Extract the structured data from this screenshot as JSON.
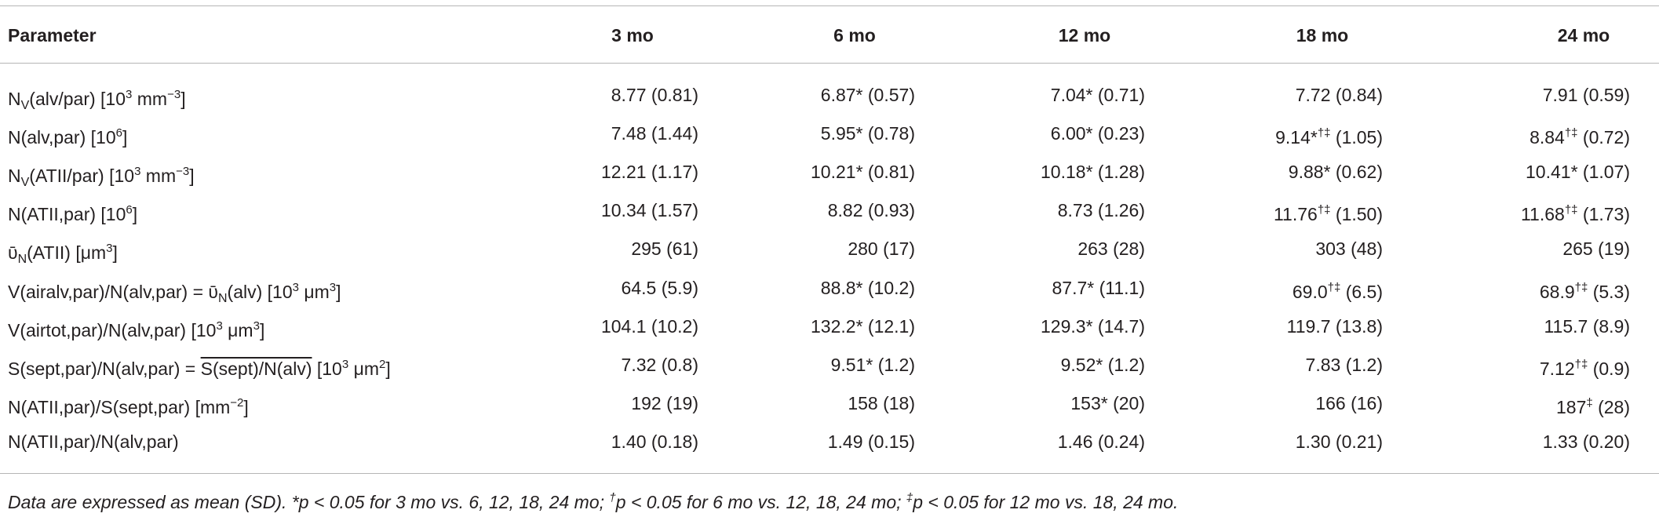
{
  "table": {
    "header": [
      "Parameter",
      "3 mo",
      "6 mo",
      "12 mo",
      "18 mo",
      "24 mo"
    ],
    "rows": [
      [
        [
          "N",
          {
            "sub": "V"
          },
          "(alv/par) [10",
          {
            "sup": "3"
          },
          " mm",
          {
            "sup": "−3"
          },
          "]"
        ],
        "8.77 (0.81)",
        "6.87* (0.57)",
        "7.04* (0.71)",
        "7.72 (0.84)",
        "7.91 (0.59)"
      ],
      [
        [
          "N(alv,par) [10",
          {
            "sup": "6"
          },
          "]"
        ],
        "7.48 (1.44)",
        "5.95* (0.78)",
        "6.00* (0.23)",
        [
          "9.14*",
          {
            "sup": "†‡"
          },
          " (1.05)"
        ],
        [
          "8.84",
          {
            "sup": "†‡"
          },
          " (0.72)"
        ]
      ],
      [
        [
          "N",
          {
            "sub": "V"
          },
          "(ATII/par) [10",
          {
            "sup": "3"
          },
          " mm",
          {
            "sup": "−3"
          },
          "]"
        ],
        "12.21 (1.17)",
        "10.21* (0.81)",
        "10.18* (1.28)",
        "9.88* (0.62)",
        "10.41* (1.07)"
      ],
      [
        [
          "N(ATII,par) [10",
          {
            "sup": "6"
          },
          "]"
        ],
        "10.34 (1.57)",
        "8.82 (0.93)",
        "8.73 (1.26)",
        [
          "11.76",
          {
            "sup": "†‡"
          },
          " (1.50)"
        ],
        [
          "11.68",
          {
            "sup": "†‡"
          },
          " (1.73)"
        ]
      ],
      [
        [
          "ῡ",
          {
            "sub": "N"
          },
          "(ATII) [μm",
          {
            "sup": "3"
          },
          "]"
        ],
        "295 (61)",
        "280 (17)",
        "263 (28)",
        "303 (48)",
        "265 (19)"
      ],
      [
        [
          "V(airalv,par)/N(alv,par) = ῡ",
          {
            "sub": "N"
          },
          "(alv) [10",
          {
            "sup": "3"
          },
          " μm",
          {
            "sup": "3"
          },
          "]"
        ],
        "64.5 (5.9)",
        "88.8* (10.2)",
        "87.7* (11.1)",
        [
          "69.0",
          {
            "sup": "†‡"
          },
          " (6.5)"
        ],
        [
          "68.9",
          {
            "sup": "†‡"
          },
          " (5.3)"
        ]
      ],
      [
        [
          "V(airtot,par)/N(alv,par) [10",
          {
            "sup": "3"
          },
          " μm",
          {
            "sup": "3"
          },
          "]"
        ],
        "104.1 (10.2)",
        "132.2* (12.1)",
        "129.3* (14.7)",
        "119.7 (13.8)",
        "115.7 (8.9)"
      ],
      [
        [
          "S(sept,par)/N(alv,par) = ",
          {
            "over": "S(sept)/N(alv)"
          },
          " [10",
          {
            "sup": "3"
          },
          " μm",
          {
            "sup": "2"
          },
          "]"
        ],
        "7.32 (0.8)",
        "9.51* (1.2)",
        "9.52* (1.2)",
        "7.83 (1.2)",
        [
          "7.12",
          {
            "sup": "†‡"
          },
          " (0.9)"
        ]
      ],
      [
        [
          "N(ATII,par)/S(sept,par) [mm",
          {
            "sup": "−2"
          },
          "]"
        ],
        "192 (19)",
        "158 (18)",
        "153* (20)",
        "166 (16)",
        [
          "187",
          {
            "sup": "‡"
          },
          " (28)"
        ]
      ],
      [
        "N(ATII,par)/N(alv,par)",
        "1.40 (0.18)",
        "1.49 (0.15)",
        "1.46 (0.24)",
        "1.30 (0.21)",
        "1.33 (0.20)"
      ]
    ],
    "footnote": [
      "Data are expressed as mean (SD). *p < 0.05 for 3 mo vs. 6, 12, 18, 24 mo; ",
      {
        "sup": "†"
      },
      "p < 0.05 for 6 mo vs. 12, 18, 24 mo; ",
      {
        "sup": "‡"
      },
      "p < 0.05 for 12 mo vs. 18, 24 mo."
    ]
  }
}
